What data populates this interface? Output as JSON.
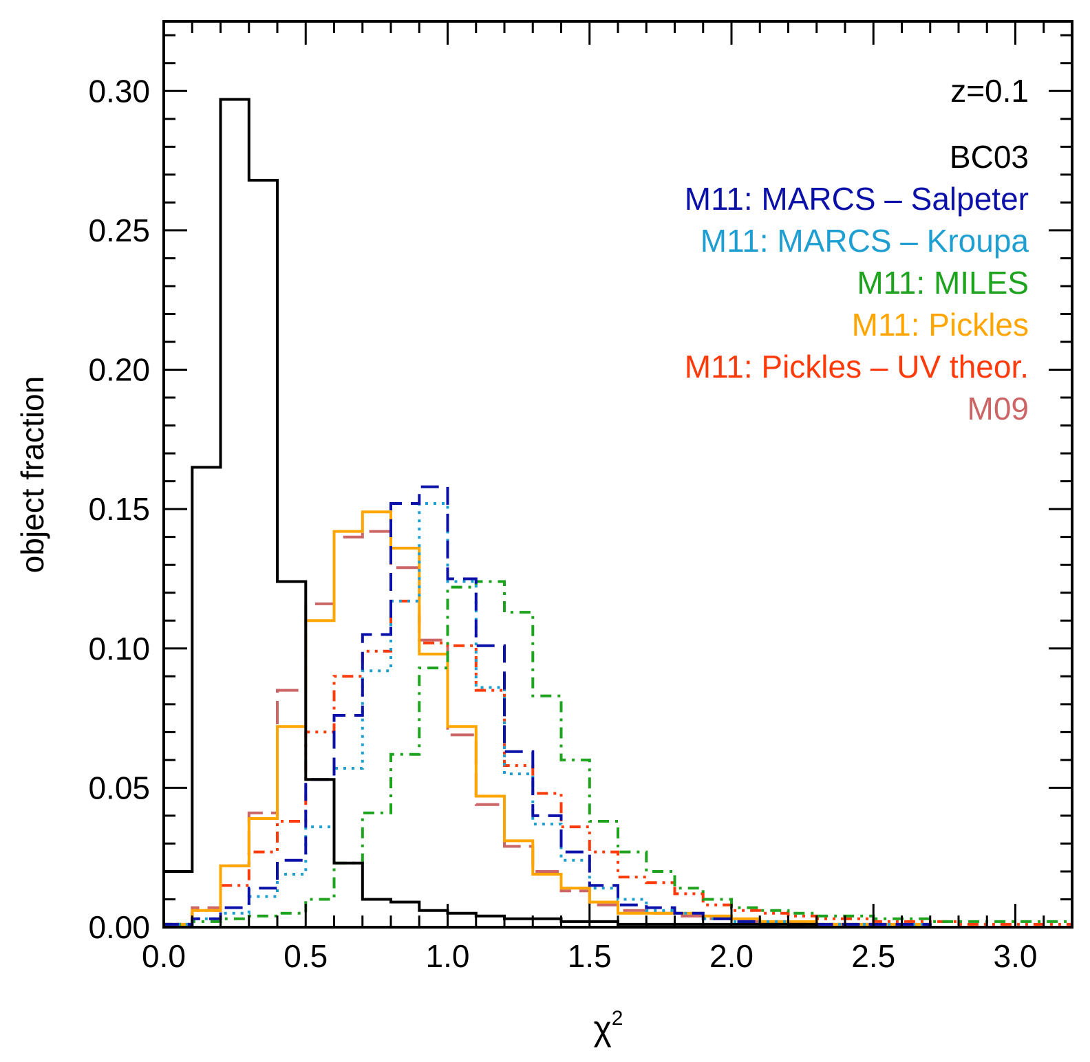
{
  "chart_data": {
    "type": "histogram",
    "xlabel": "χ",
    "xlabel_sup": "2",
    "ylabel": "object fraction",
    "xlim": [
      0.0,
      3.2
    ],
    "ylim": [
      0.0,
      0.325
    ],
    "xticks": [
      0.0,
      0.5,
      1.0,
      1.5,
      2.0,
      2.5,
      3.0
    ],
    "xtick_labels": [
      "0.0",
      "0.5",
      "1.0",
      "1.5",
      "2.0",
      "2.5",
      "3.0"
    ],
    "yticks": [
      0.0,
      0.05,
      0.1,
      0.15,
      0.2,
      0.25,
      0.3
    ],
    "ytick_labels": [
      "0.00",
      "0.05",
      "0.10",
      "0.15",
      "0.20",
      "0.25",
      "0.30"
    ],
    "annotation": "z=0.1",
    "legend_position": "top-right",
    "bin_edges": [
      0.0,
      0.1,
      0.2,
      0.3,
      0.4,
      0.5,
      0.6,
      0.7,
      0.8,
      0.9,
      1.0,
      1.1,
      1.2,
      1.3,
      1.4,
      1.5,
      1.6,
      1.7,
      1.8,
      1.9,
      2.0,
      2.1,
      2.2,
      2.3,
      2.4,
      2.5,
      2.6,
      2.7,
      2.8,
      2.9,
      3.0,
      3.1,
      3.2
    ],
    "series": [
      {
        "name": "BC03",
        "color": "#000000",
        "dash": "solid",
        "values": [
          0.02,
          0.165,
          0.297,
          0.268,
          0.124,
          0.053,
          0.023,
          0.01,
          0.009,
          0.006,
          0.005,
          0.004,
          0.003,
          0.003,
          0.002,
          0.002,
          0.001,
          0.001,
          0.001,
          0.001,
          0.001,
          0.001,
          0.001,
          0.0,
          0.0,
          0.0,
          0.0,
          0.0,
          0.0,
          0.0,
          0.0,
          0.0
        ]
      },
      {
        "name": "M11: MARCS – Salpeter",
        "color": "#0a10a8",
        "dash": "dashed",
        "values": [
          0.001,
          0.003,
          0.007,
          0.014,
          0.024,
          0.053,
          0.076,
          0.105,
          0.152,
          0.158,
          0.125,
          0.101,
          0.063,
          0.04,
          0.027,
          0.015,
          0.008,
          0.007,
          0.005,
          0.003,
          0.002,
          0.001,
          0.001,
          0.001,
          0.001,
          0.001,
          0.001,
          0.0,
          0.0,
          0.0,
          0.0,
          0.0
        ]
      },
      {
        "name": "M11: MARCS – Kroupa",
        "color": "#1f9fd1",
        "dash": "dotted",
        "values": [
          0.001,
          0.003,
          0.005,
          0.011,
          0.019,
          0.036,
          0.057,
          0.092,
          0.117,
          0.152,
          0.124,
          0.086,
          0.055,
          0.037,
          0.024,
          0.014,
          0.01,
          0.006,
          0.005,
          0.003,
          0.002,
          0.002,
          0.001,
          0.001,
          0.001,
          0.001,
          0.001,
          0.0,
          0.0,
          0.0,
          0.0,
          0.0
        ]
      },
      {
        "name": "M11: MILES",
        "color": "#1ea31e",
        "dash": "dashdot",
        "values": [
          0.001,
          0.002,
          0.003,
          0.004,
          0.005,
          0.01,
          0.023,
          0.041,
          0.062,
          0.093,
          0.122,
          0.124,
          0.113,
          0.083,
          0.06,
          0.038,
          0.027,
          0.02,
          0.014,
          0.01,
          0.007,
          0.006,
          0.005,
          0.004,
          0.004,
          0.003,
          0.003,
          0.002,
          0.002,
          0.002,
          0.002,
          0.002
        ]
      },
      {
        "name": "M11: Pickles",
        "color": "#ffa500",
        "dash": "solid",
        "values": [
          0.001,
          0.006,
          0.022,
          0.039,
          0.072,
          0.11,
          0.142,
          0.149,
          0.136,
          0.098,
          0.072,
          0.047,
          0.031,
          0.019,
          0.014,
          0.009,
          0.005,
          0.005,
          0.005,
          0.004,
          0.003,
          0.002,
          0.002,
          0.001,
          0.001,
          0.001,
          0.001,
          0.0,
          0.0,
          0.0,
          0.0,
          0.0
        ]
      },
      {
        "name": "M11: Pickles – UV theor.",
        "color": "#ff3a0a",
        "dash": "dashdotdot",
        "values": [
          0.001,
          0.006,
          0.015,
          0.027,
          0.038,
          0.07,
          0.09,
          0.099,
          0.117,
          0.102,
          0.101,
          0.085,
          0.058,
          0.048,
          0.036,
          0.027,
          0.018,
          0.016,
          0.012,
          0.008,
          0.006,
          0.005,
          0.004,
          0.003,
          0.003,
          0.002,
          0.002,
          0.002,
          0.001,
          0.001,
          0.001,
          0.001
        ]
      },
      {
        "name": "M09",
        "color": "#cc6666",
        "dash": "longdash",
        "values": [
          0.001,
          0.007,
          0.022,
          0.041,
          0.085,
          0.116,
          0.14,
          0.142,
          0.129,
          0.103,
          0.069,
          0.044,
          0.029,
          0.02,
          0.013,
          0.008,
          0.006,
          0.005,
          0.004,
          0.003,
          0.002,
          0.002,
          0.001,
          0.001,
          0.001,
          0.001,
          0.001,
          0.0,
          0.0,
          0.0,
          0.0,
          0.0
        ]
      }
    ]
  }
}
